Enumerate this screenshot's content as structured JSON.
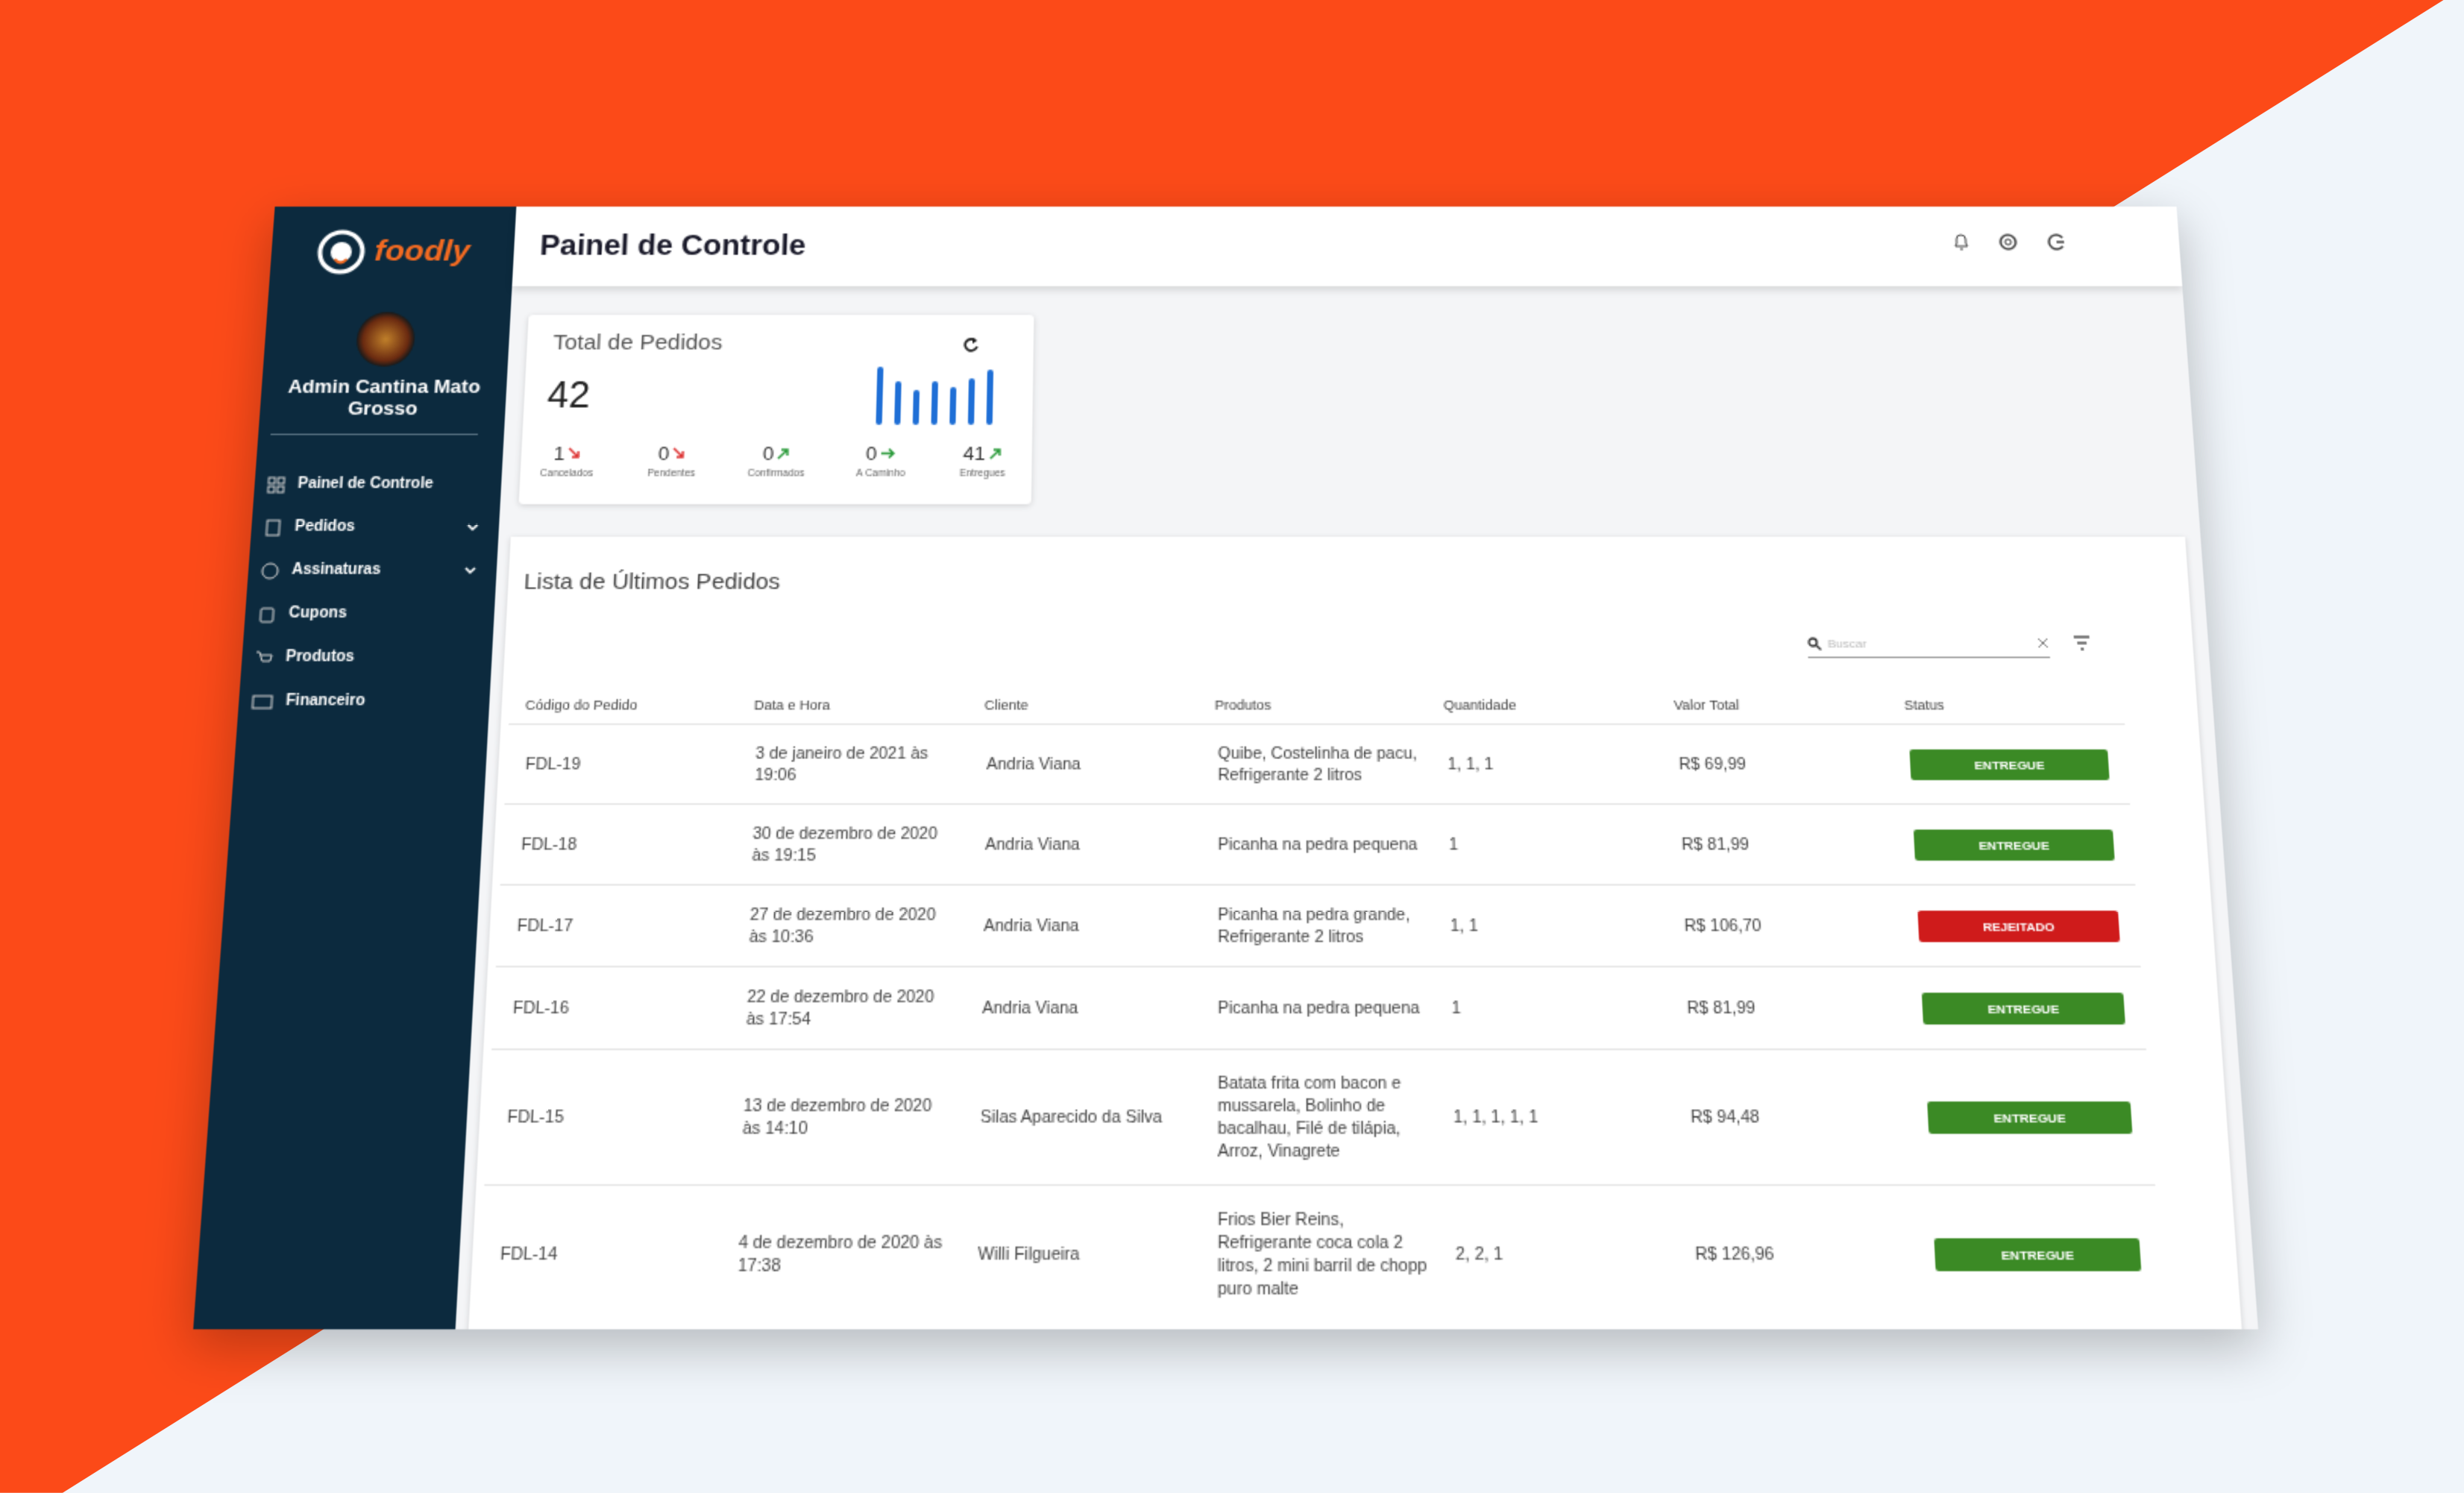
{
  "header": {
    "title": "Painel de Controle"
  },
  "sidebar": {
    "logo": "foodly",
    "user_name": "Admin Cantina Mato Grosso",
    "nav": [
      "Painel de Controle",
      "Pedidos",
      "Assinaturas",
      "Cupons",
      "Produtos",
      "Financeiro"
    ]
  },
  "summary": {
    "title": "Total de Pedidos",
    "total": 42,
    "stats": [
      {
        "value": 1,
        "label": "Cancelados"
      },
      {
        "value": 0,
        "label": "Pendentes"
      },
      {
        "value": 0,
        "label": "Confirmados"
      },
      {
        "value": 0,
        "label": "A Caminho"
      },
      {
        "value": 41,
        "label": "Entregues"
      }
    ]
  },
  "table": {
    "title": "Lista de Últimos Pedidos",
    "search_placeholder": "Buscar",
    "columns": [
      "Código do Pedido",
      "Data e Hora",
      "Cliente",
      "Produtos",
      "Quantidade",
      "Valor Total",
      "Status"
    ],
    "rows": [
      {
        "code": "FDL-19",
        "date": "3 de janeiro de 2021 às 19:06",
        "client": "Andria Viana",
        "products": "Quibe, Costelinha de pacu, Refrigerante 2 litros",
        "quantity": "1, 1, 1",
        "total": "R$ 69,99",
        "status": "ENTREGUE",
        "status_color": "#3b8a25"
      },
      {
        "code": "FDL-18",
        "date": "30 de dezembro de 2020 às 19:15",
        "client": "Andria Viana",
        "products": "Picanha na pedra pequena",
        "quantity": "1",
        "total": "R$ 81,99",
        "status": "ENTREGUE",
        "status_color": "#3b8a25"
      },
      {
        "code": "FDL-17",
        "date": "27 de dezembro de 2020 às 10:36",
        "client": "Andria Viana",
        "products": "Picanha na pedra grande, Refrigerante 2 litros",
        "quantity": "1, 1",
        "total": "R$ 106,70",
        "status": "REJEITADO",
        "status_color": "#cf1b1b"
      },
      {
        "code": "FDL-16",
        "date": "22 de dezembro de 2020 às 17:54",
        "client": "Andria Viana",
        "products": "Picanha na pedra pequena",
        "quantity": "1",
        "total": "R$ 81,99",
        "status": "ENTREGUE",
        "status_color": "#3b8a25"
      },
      {
        "code": "FDL-15",
        "date": "13 de dezembro de 2020 às 14:10",
        "client": "Silas Aparecido da Silva",
        "products": "Batata frita com bacon e mussarela, Bolinho de bacalhau, Filé de tilápia, Arroz, Vinagrete",
        "quantity": "1, 1, 1, 1, 1",
        "total": "R$ 94,48",
        "status": "ENTREGUE",
        "status_color": "#3b8a25"
      },
      {
        "code": "FDL-14",
        "date": "4 de dezembro de 2020 às 17:38",
        "client": "Willi Filgueira",
        "products": "Frios Bier Reins, Refrigerante coca cola 2 litros, 2 mini barril de chopp puro malte",
        "quantity": "2, 2, 1",
        "total": "R$ 126,96",
        "status": "ENTREGUE",
        "status_color": "#3b8a25"
      }
    ]
  }
}
